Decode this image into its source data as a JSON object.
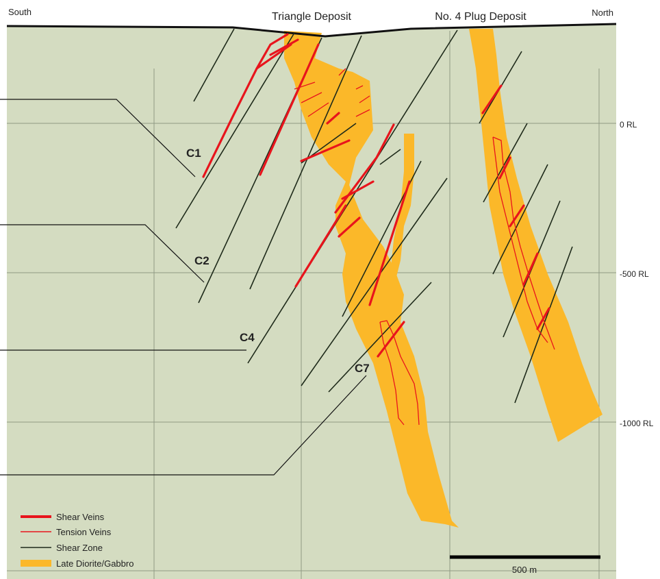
{
  "header": {
    "left": "South",
    "right": "North"
  },
  "deposits": [
    "Triangle Deposit",
    "No. 4 Plug Deposit"
  ],
  "levels": [
    "0 RL",
    "-500 RL",
    "-1000 RL"
  ],
  "zones": [
    "C1",
    "C2",
    "C4",
    "C7"
  ],
  "legend": [
    "Shear Veins",
    "Tension Veins",
    "Shear Zone",
    "Late Diorite/Gabbro"
  ],
  "scale": "500 m"
}
